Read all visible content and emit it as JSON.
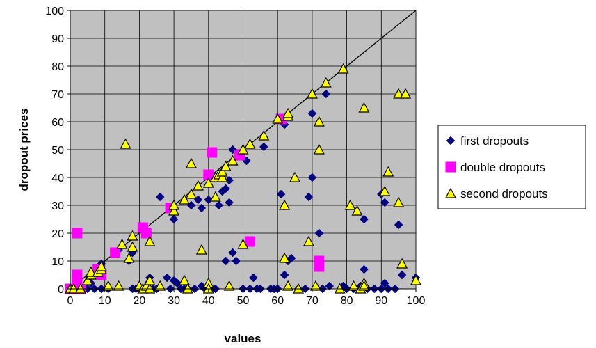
{
  "chart_data": {
    "type": "scatter",
    "title": "",
    "xlabel": "values",
    "ylabel": "dropout prices",
    "xlim": [
      0,
      100
    ],
    "ylim": [
      0,
      100
    ],
    "xticks": [
      0,
      10,
      20,
      30,
      40,
      50,
      60,
      70,
      80,
      90,
      100
    ],
    "yticks": [
      0,
      10,
      20,
      30,
      40,
      50,
      60,
      70,
      80,
      90,
      100
    ],
    "grid": true,
    "plot_background": "#c0c0c0",
    "legend_position": "right",
    "reference_line": {
      "from": [
        0,
        0
      ],
      "to": [
        100,
        100
      ],
      "color": "#000000"
    },
    "series": [
      {
        "name": "first dropouts",
        "marker": "diamond",
        "color": "#000080",
        "points": [
          [
            0,
            0
          ],
          [
            1,
            0
          ],
          [
            3,
            0
          ],
          [
            5,
            0
          ],
          [
            6,
            2
          ],
          [
            7,
            0
          ],
          [
            9,
            0
          ],
          [
            9,
            9
          ],
          [
            11,
            0
          ],
          [
            14,
            14
          ],
          [
            17,
            10
          ],
          [
            18,
            0
          ],
          [
            18,
            13
          ],
          [
            19,
            0
          ],
          [
            20,
            0
          ],
          [
            21,
            0
          ],
          [
            22,
            0
          ],
          [
            23,
            4
          ],
          [
            24,
            0
          ],
          [
            25,
            0
          ],
          [
            26,
            33
          ],
          [
            28,
            4
          ],
          [
            29,
            0
          ],
          [
            30,
            25
          ],
          [
            30,
            3
          ],
          [
            31,
            2
          ],
          [
            32,
            0
          ],
          [
            33,
            0
          ],
          [
            34,
            0
          ],
          [
            35,
            30
          ],
          [
            36,
            0
          ],
          [
            37,
            32
          ],
          [
            38,
            29
          ],
          [
            38,
            1
          ],
          [
            39,
            0
          ],
          [
            40,
            32
          ],
          [
            40,
            1
          ],
          [
            41,
            0
          ],
          [
            42,
            0
          ],
          [
            43,
            30
          ],
          [
            44,
            35
          ],
          [
            45,
            36
          ],
          [
            45,
            10
          ],
          [
            46,
            31
          ],
          [
            46,
            39
          ],
          [
            47,
            13
          ],
          [
            47,
            50
          ],
          [
            48,
            10
          ],
          [
            50,
            0
          ],
          [
            51,
            46
          ],
          [
            52,
            0
          ],
          [
            53,
            4
          ],
          [
            54,
            0
          ],
          [
            55,
            0
          ],
          [
            56,
            51
          ],
          [
            58,
            0
          ],
          [
            59,
            0
          ],
          [
            60,
            0
          ],
          [
            61,
            34
          ],
          [
            62,
            5
          ],
          [
            62,
            59
          ],
          [
            63,
            10
          ],
          [
            64,
            11
          ],
          [
            66,
            0
          ],
          [
            68,
            0
          ],
          [
            69,
            33
          ],
          [
            70,
            63
          ],
          [
            70,
            40
          ],
          [
            72,
            20
          ],
          [
            73,
            0
          ],
          [
            74,
            70
          ],
          [
            75,
            1
          ],
          [
            79,
            1
          ],
          [
            80,
            0
          ],
          [
            82,
            0
          ],
          [
            84,
            1
          ],
          [
            85,
            7
          ],
          [
            85,
            25
          ],
          [
            86,
            0
          ],
          [
            88,
            0
          ],
          [
            90,
            34
          ],
          [
            90,
            0
          ],
          [
            91,
            31
          ],
          [
            91,
            2
          ],
          [
            92,
            0
          ],
          [
            94,
            0
          ],
          [
            95,
            23
          ],
          [
            96,
            5
          ],
          [
            100,
            4
          ]
        ]
      },
      {
        "name": "double dropouts",
        "marker": "square",
        "color": "#ff00ff",
        "points": [
          [
            0,
            0
          ],
          [
            2,
            20
          ],
          [
            2,
            5
          ],
          [
            2,
            2
          ],
          [
            3,
            0
          ],
          [
            8,
            7
          ],
          [
            9,
            5
          ],
          [
            13,
            13
          ],
          [
            21,
            22
          ],
          [
            22,
            20
          ],
          [
            29,
            29
          ],
          [
            40,
            41
          ],
          [
            41,
            49
          ],
          [
            49,
            48
          ],
          [
            52,
            17
          ],
          [
            61,
            61
          ],
          [
            72,
            8
          ],
          [
            72,
            10
          ]
        ]
      },
      {
        "name": "second dropouts",
        "marker": "triangle",
        "color": "#ffff00",
        "points": [
          [
            0,
            0
          ],
          [
            1,
            0
          ],
          [
            3,
            0
          ],
          [
            5,
            3
          ],
          [
            6,
            5
          ],
          [
            6,
            6
          ],
          [
            8,
            6
          ],
          [
            9,
            7
          ],
          [
            9,
            8
          ],
          [
            11,
            1
          ],
          [
            14,
            1
          ],
          [
            15,
            16
          ],
          [
            16,
            52
          ],
          [
            17,
            11
          ],
          [
            18,
            15
          ],
          [
            18,
            19
          ],
          [
            20,
            1
          ],
          [
            21,
            0
          ],
          [
            22,
            1
          ],
          [
            23,
            0
          ],
          [
            23,
            3
          ],
          [
            23,
            17
          ],
          [
            26,
            1
          ],
          [
            30,
            28
          ],
          [
            30,
            30
          ],
          [
            33,
            32
          ],
          [
            33,
            3
          ],
          [
            34,
            0
          ],
          [
            35,
            34
          ],
          [
            35,
            45
          ],
          [
            37,
            37
          ],
          [
            38,
            14
          ],
          [
            40,
            38
          ],
          [
            40,
            2
          ],
          [
            40,
            0
          ],
          [
            42,
            33
          ],
          [
            42,
            40
          ],
          [
            43,
            41
          ],
          [
            44,
            40
          ],
          [
            44,
            42
          ],
          [
            45,
            44
          ],
          [
            46,
            1
          ],
          [
            47,
            46
          ],
          [
            50,
            16
          ],
          [
            50,
            50
          ],
          [
            52,
            52
          ],
          [
            56,
            55
          ],
          [
            60,
            61
          ],
          [
            62,
            30
          ],
          [
            62,
            11
          ],
          [
            63,
            62
          ],
          [
            63,
            63
          ],
          [
            63,
            1
          ],
          [
            65,
            40
          ],
          [
            66,
            0
          ],
          [
            69,
            17
          ],
          [
            70,
            70
          ],
          [
            71,
            1
          ],
          [
            72,
            50
          ],
          [
            72,
            60
          ],
          [
            74,
            74
          ],
          [
            78,
            0
          ],
          [
            79,
            79
          ],
          [
            81,
            30
          ],
          [
            82,
            1
          ],
          [
            83,
            28
          ],
          [
            84,
            0
          ],
          [
            85,
            2
          ],
          [
            85,
            1
          ],
          [
            85,
            65
          ],
          [
            91,
            35
          ],
          [
            92,
            42
          ],
          [
            95,
            31
          ],
          [
            95,
            70
          ],
          [
            96,
            9
          ],
          [
            97,
            70
          ],
          [
            100,
            3
          ]
        ]
      }
    ]
  }
}
